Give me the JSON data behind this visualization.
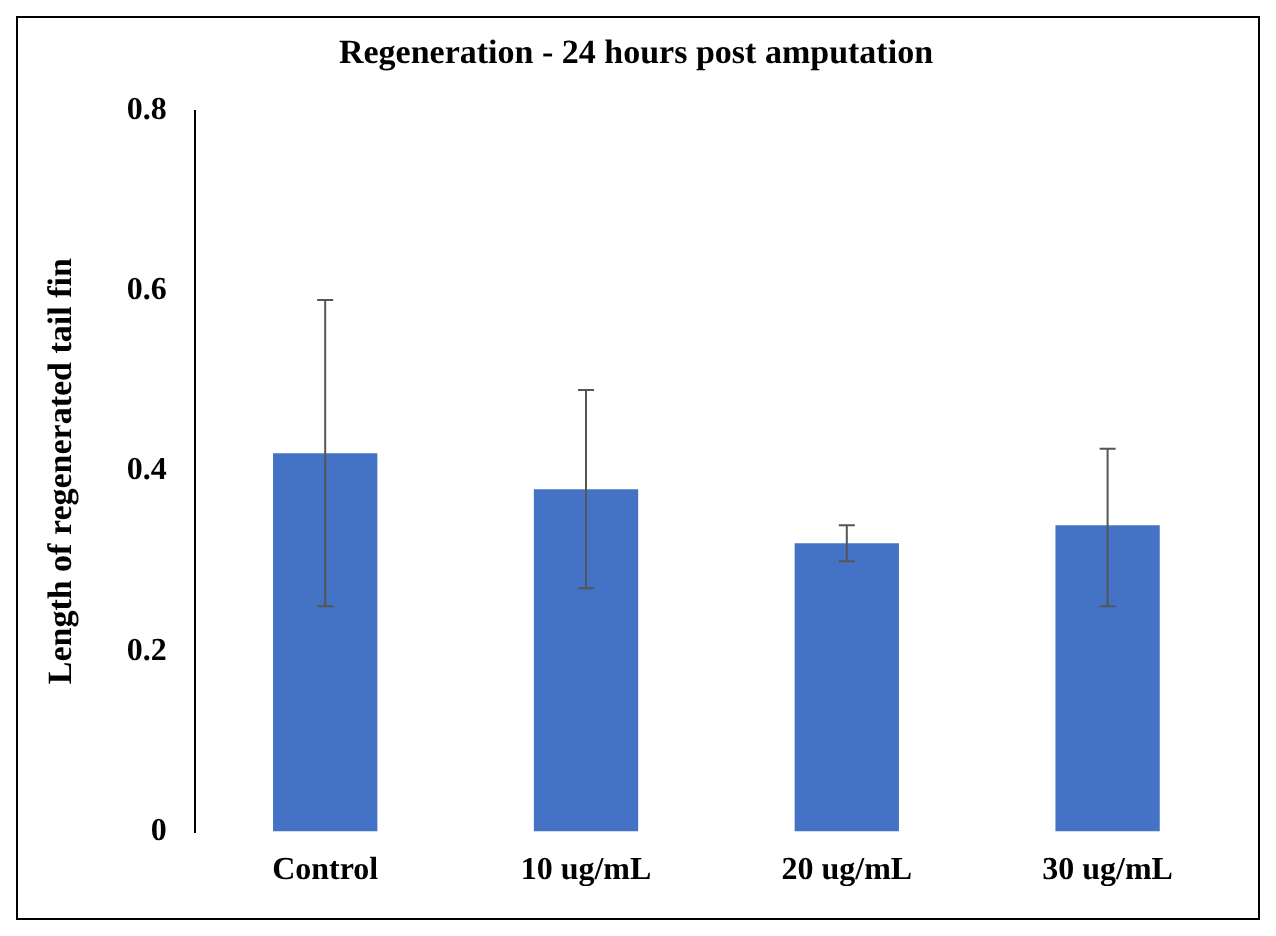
{
  "chart_data": {
    "type": "bar",
    "title": "Regeneration - 24 hours post amputation",
    "ylabel": "Length of regenerated tail fin",
    "categories": [
      "Control",
      "10 ug/mL",
      "20 ug/mL",
      "30 ug/mL"
    ],
    "values": [
      0.42,
      0.38,
      0.32,
      0.34
    ],
    "errors": [
      [
        0.25,
        0.59
      ],
      [
        0.27,
        0.49
      ],
      [
        0.3,
        0.34
      ],
      [
        0.25,
        0.425
      ]
    ],
    "color": "#4472c4",
    "ylim": [
      0,
      0.8
    ],
    "yticks": [
      0,
      0.2,
      0.4,
      0.6,
      0.8
    ],
    "grid": false,
    "legend": false
  }
}
